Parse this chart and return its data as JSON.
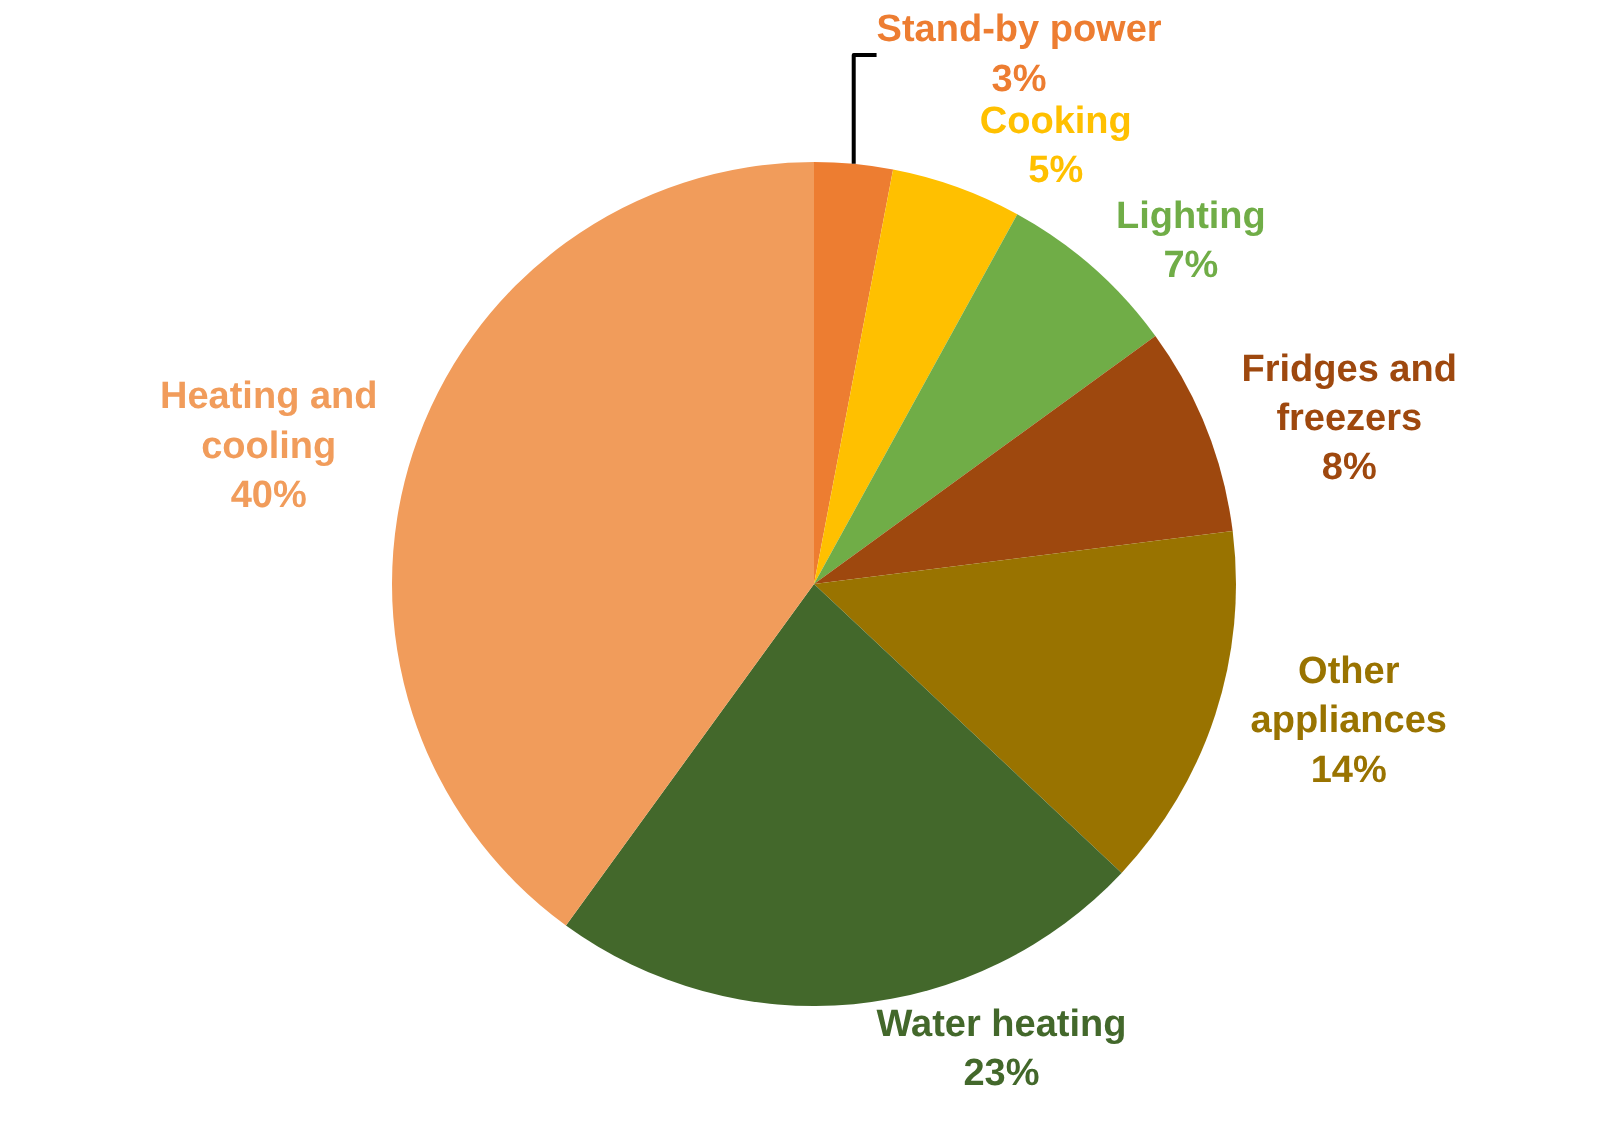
{
  "chart_data": {
    "type": "pie",
    "categories": [
      "Stand-by power",
      "Cooking",
      "Lighting",
      "Fridges and freezers",
      "Other appliances",
      "Water heating",
      "Heating and cooling"
    ],
    "values": [
      3,
      5,
      7,
      8,
      14,
      23,
      40
    ],
    "colors": [
      "#ed7d31",
      "#ffc000",
      "#70ad47",
      "#9e480e",
      "#997300",
      "#43682b",
      "#f19c5b"
    ],
    "value_labels": [
      "3%",
      "5%",
      "7%",
      "8%",
      "14%",
      "23%",
      "40%"
    ],
    "legend": false
  }
}
